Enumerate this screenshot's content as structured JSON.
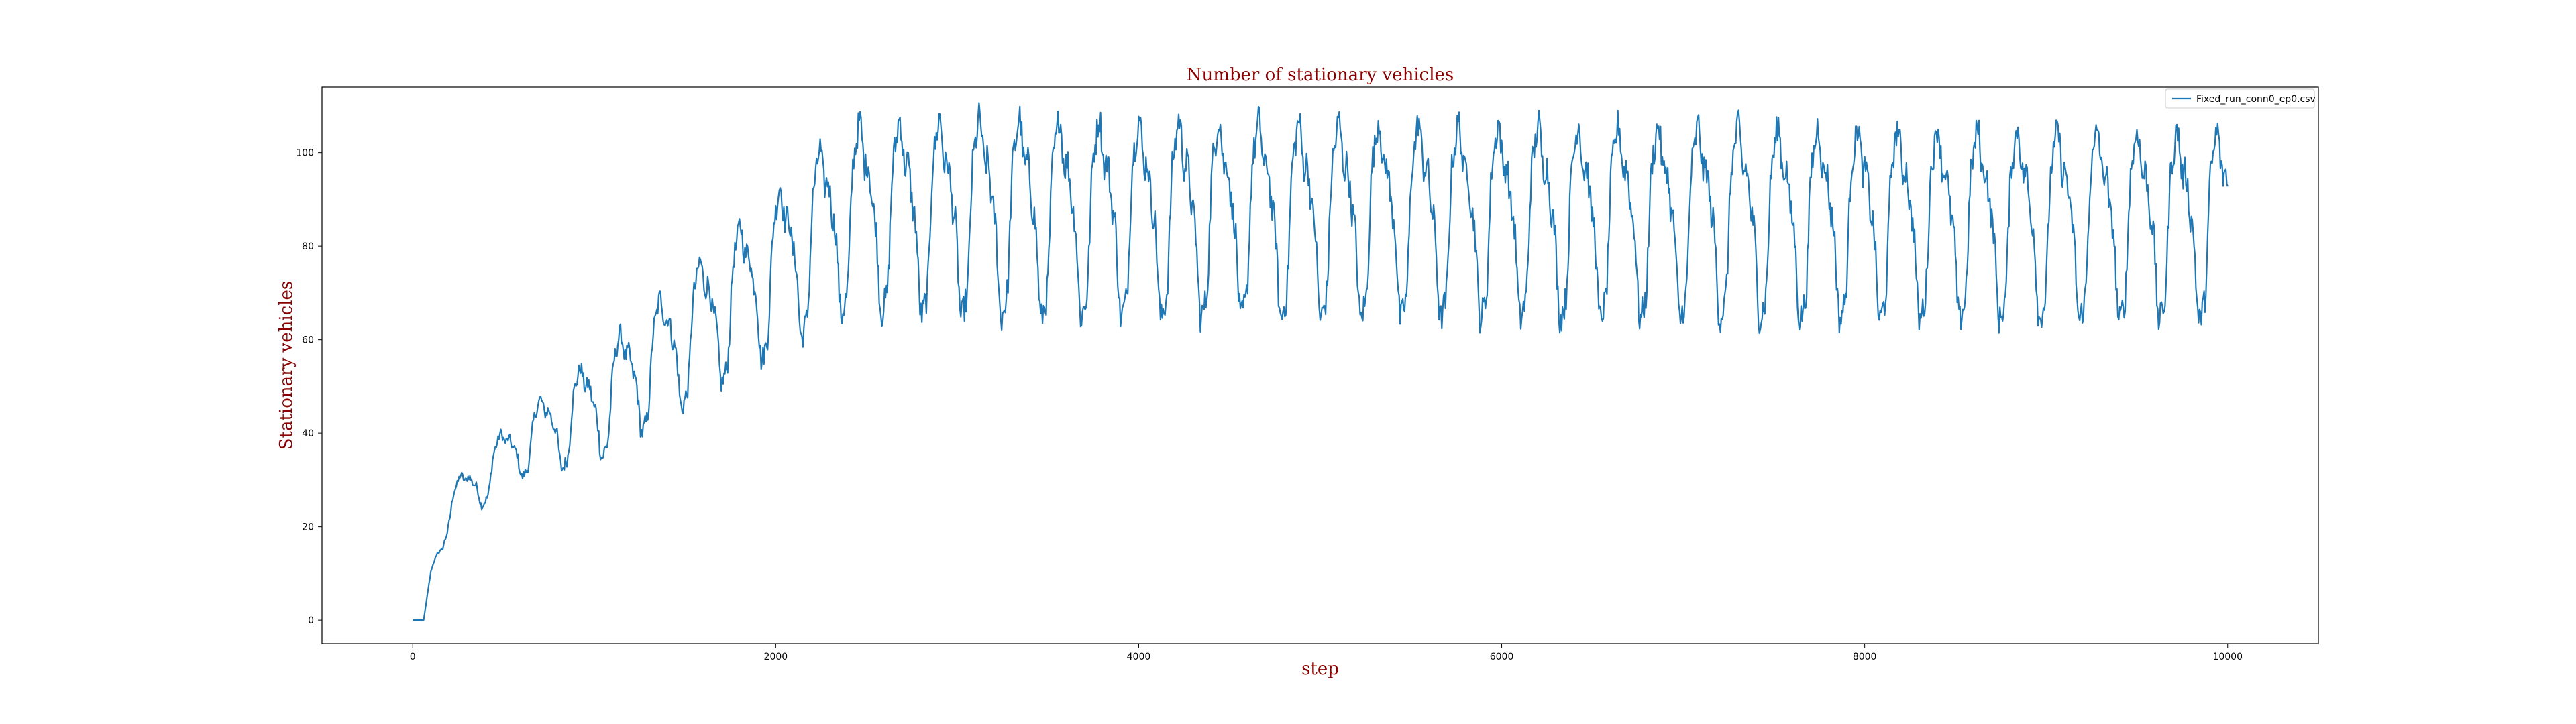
{
  "chart_data": {
    "type": "line",
    "title": "Number of stationary vehicles",
    "xlabel": "step",
    "ylabel": "Stationary vehicles",
    "xlim": [
      -500,
      10500
    ],
    "ylim": [
      -5,
      114
    ],
    "xticks": [
      0,
      2000,
      4000,
      6000,
      8000,
      10000
    ],
    "yticks": [
      0,
      20,
      40,
      60,
      80,
      100
    ],
    "grid": false,
    "legend_position": "top-right",
    "colors": {
      "title": "#8b0000",
      "axis_labels": "#8b0000",
      "series": "#1f77b4"
    },
    "trend": {
      "x": [
        0,
        60,
        100,
        200,
        300,
        400,
        500,
        600,
        700,
        800,
        900,
        1000,
        1100,
        1200,
        1300,
        1400,
        1500,
        1600,
        1700,
        1800,
        1900,
        2000,
        2100,
        2200,
        2300,
        2400,
        3000,
        10000
      ],
      "y": [
        0,
        0,
        10,
        24,
        28,
        31,
        35,
        38,
        40,
        42,
        44,
        46,
        49,
        52,
        55,
        58,
        61,
        64,
        67,
        70,
        73,
        76,
        79,
        82,
        85,
        88,
        88,
        86
      ]
    },
    "amplitude": {
      "x": [
        0,
        60,
        100,
        200,
        600,
        1000,
        1400,
        1800,
        2100,
        2400,
        3000,
        10000
      ],
      "y": [
        0,
        0,
        1,
        4,
        6,
        10,
        12,
        14,
        16,
        18,
        19,
        18
      ]
    },
    "period": 220,
    "series": [
      {
        "name": "Fixed_run_conn0_ep0.csv",
        "x_start": 0,
        "x_end": 10000
      }
    ]
  }
}
